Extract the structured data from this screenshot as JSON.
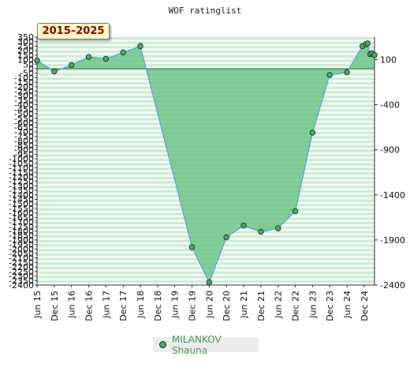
{
  "chart_data": {
    "type": "area",
    "title": "WOF ratinglist",
    "period_label": "2015–2025",
    "legend_label": "MILANKOV Shauna",
    "x_labels": [
      "Jun 15",
      "Dec 15",
      "Jun 16",
      "Dec 16",
      "Jun 17",
      "Dec 17",
      "Jun 18",
      "Dec 18",
      "Jun 19",
      "Dec 19",
      "Jun 20",
      "Dec 20",
      "Jun 21",
      "Dec 21",
      "Jun 22",
      "Dec 22",
      "Jun 23",
      "Dec 23",
      "Jun 24",
      "Dec 24"
    ],
    "x_range": [
      0,
      19.6
    ],
    "y_left_ticks": [
      350,
      300,
      250,
      200,
      150,
      100,
      50,
      0,
      -50,
      -100,
      -150,
      -200,
      -250,
      -300,
      -350,
      -400,
      -450,
      -500,
      -550,
      -600,
      -650,
      -700,
      -750,
      -800,
      -850,
      -900,
      -950,
      -1000,
      -1050,
      -1100,
      -1150,
      -1200,
      -1250,
      -1300,
      -1350,
      -1400,
      -1450,
      -1500,
      -1550,
      -1600,
      -1650,
      -1700,
      -1750,
      -1800,
      -1850,
      -1900,
      -1950,
      -2000,
      -2050,
      -2100,
      -2150,
      -2200,
      -2250,
      -2300,
      -2350,
      -2400
    ],
    "y_right_ticks": [
      100,
      -400,
      -900,
      -1400,
      -1900,
      -2400
    ],
    "ylim": [
      -2400,
      350
    ],
    "series": [
      {
        "name": "MILANKOV Shauna",
        "x": [
          0,
          1,
          2,
          3,
          4,
          5,
          6,
          9,
          10,
          11,
          12,
          13,
          14,
          15,
          16,
          17,
          18,
          18.9,
          19.1,
          19.2,
          19.35,
          19.45,
          19.6
        ],
        "y": [
          90,
          -30,
          40,
          130,
          110,
          180,
          250,
          -1980,
          -2370,
          -1870,
          -1740,
          -1810,
          -1770,
          -1580,
          -710,
          -70,
          -40,
          250,
          270,
          280,
          160,
          170,
          150
        ]
      }
    ],
    "colors": {
      "area": "#6ec48a",
      "line": "#5a9fd4",
      "point": "#4aa86a",
      "grid_stripe": "#cdebd3"
    }
  }
}
